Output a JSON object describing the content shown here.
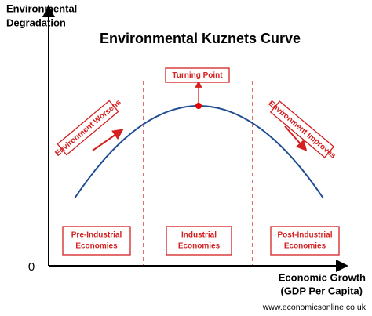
{
  "title": "Environmental Kuznets Curve",
  "y_axis_label": [
    "Environmental",
    "Degradation"
  ],
  "origin_label": "0",
  "x_axis_label": [
    "Economic Growth",
    "(GDP Per Capita)"
  ],
  "turning_point": "Turning Point",
  "trend_labels": [
    "Environment Worsens",
    "Environment Improves"
  ],
  "stages": [
    [
      "Pre-Industrial",
      "Economies"
    ],
    [
      "Industrial",
      "Economies"
    ],
    [
      "Post-Industrial",
      "Economies"
    ]
  ],
  "source": "www.economicsonline.co.uk"
}
